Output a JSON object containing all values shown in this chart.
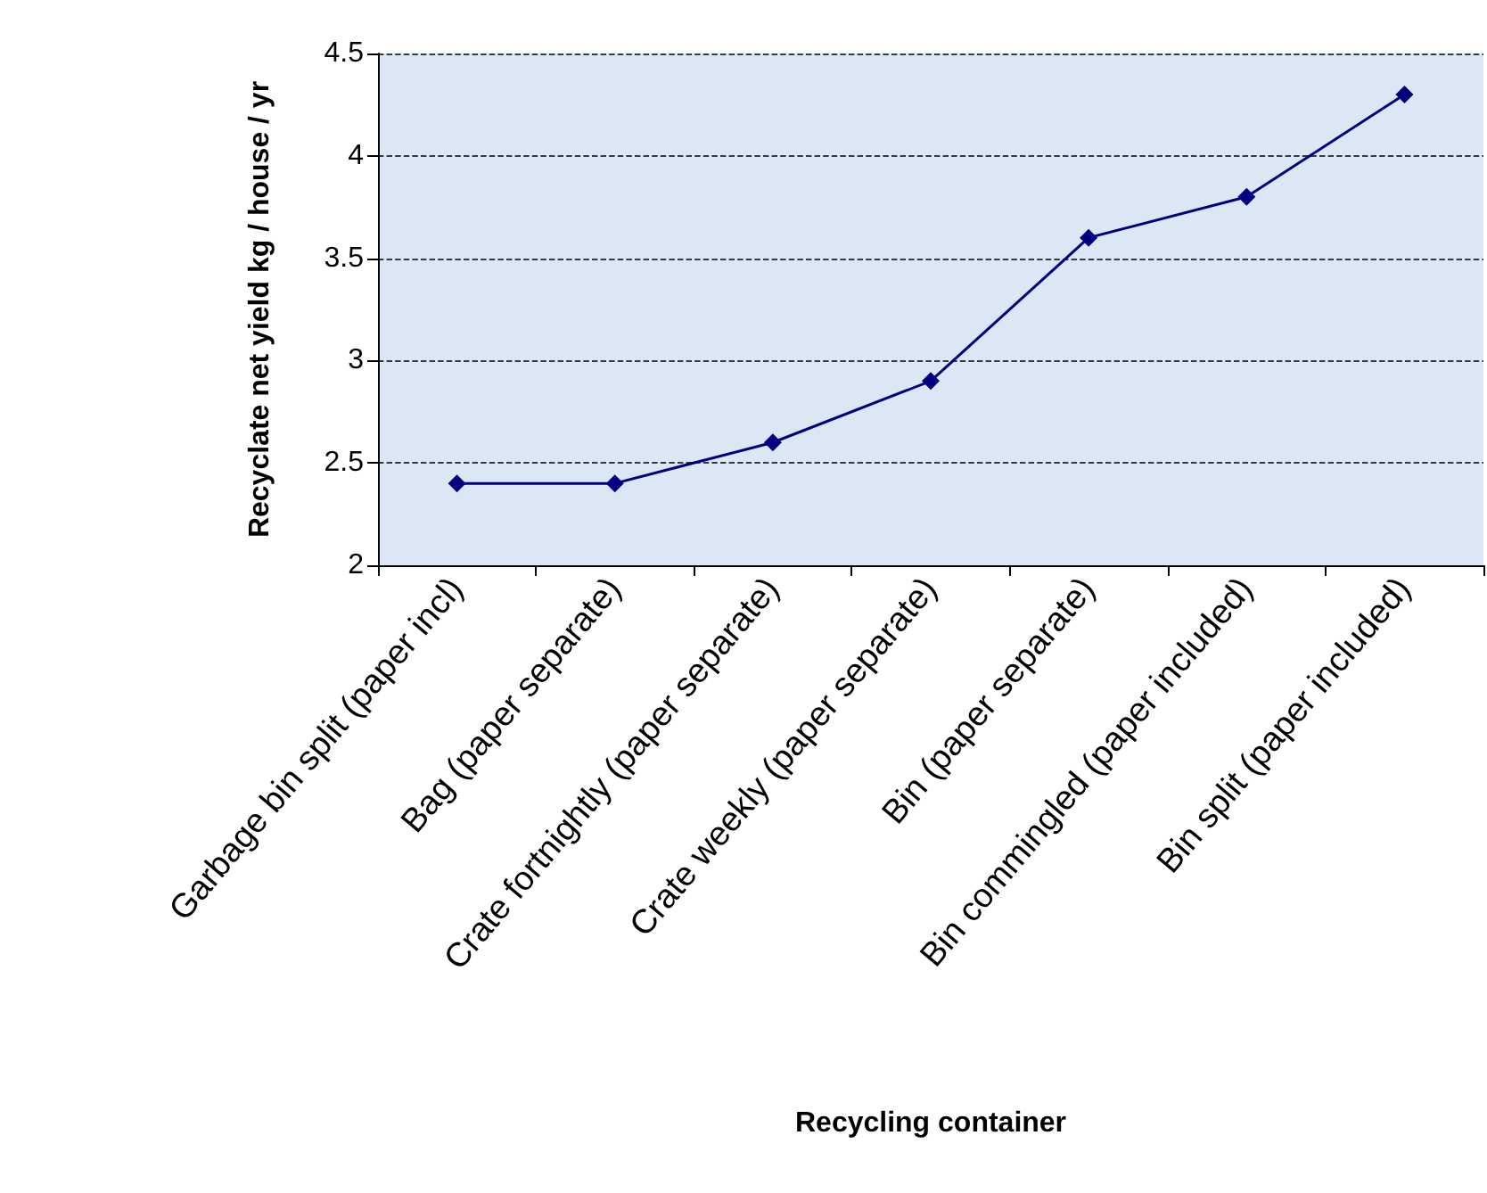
{
  "chart_data": {
    "type": "line",
    "xlabel": "Recycling container",
    "ylabel": "Recyclate net yield kg / house / yr",
    "categories": [
      "Garbage bin split (paper incl)",
      "Bag (paper separate)",
      "Crate fortnightly (paper separate)",
      "Crate weekly (paper separate)",
      "Bin (paper separate)",
      "Bin commingled (paper included)",
      "Bin split (paper included)"
    ],
    "values": [
      2.4,
      2.4,
      2.6,
      2.9,
      3.6,
      3.8,
      4.3
    ],
    "color": "#000080",
    "ylim": [
      2,
      4.5
    ],
    "yticks": [
      2,
      2.5,
      3,
      3.5,
      4,
      4.5
    ],
    "grid": "y",
    "marker": "diamond",
    "line_style": "solid"
  }
}
